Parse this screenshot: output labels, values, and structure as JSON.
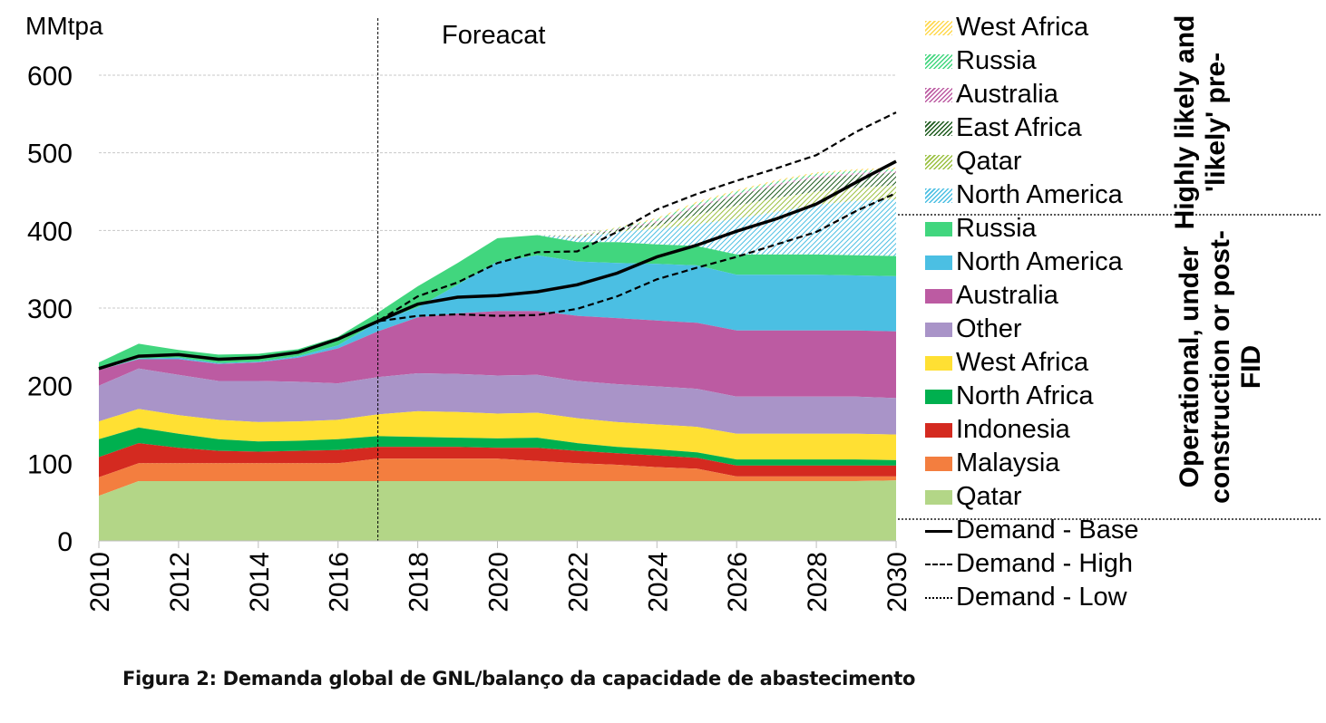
{
  "chart_data": {
    "type": "area",
    "title": "",
    "ylabel": "MMtpa",
    "xlabel": "",
    "forecast_label": "Foreacat",
    "forecast_start_x": 2017,
    "ylim": [
      0,
      600
    ],
    "yticks": [
      0,
      100,
      200,
      300,
      400,
      500,
      600
    ],
    "xlim": [
      2010,
      2030
    ],
    "xticks": [
      2010,
      2012,
      2014,
      2016,
      2018,
      2020,
      2022,
      2024,
      2026,
      2028,
      2030
    ],
    "grid": "horizontal-dotted",
    "x": [
      2010,
      2011,
      2012,
      2013,
      2014,
      2015,
      2016,
      2017,
      2018,
      2019,
      2020,
      2021,
      2022,
      2023,
      2024,
      2025,
      2026,
      2027,
      2028,
      2029,
      2030
    ],
    "stacked_cumulative": true,
    "series": [
      {
        "name": "Qatar",
        "group": "operational",
        "color": "#b3d687",
        "pattern": "solid",
        "values": [
          58,
          77,
          77,
          77,
          77,
          77,
          77,
          77,
          77,
          77,
          77,
          77,
          77,
          77,
          77,
          77,
          77,
          77,
          77,
          77,
          78
        ]
      },
      {
        "name": "Malaysia",
        "group": "operational",
        "color": "#f37e3f",
        "pattern": "solid",
        "values": [
          82,
          100,
          100,
          100,
          100,
          100,
          100,
          106,
          106,
          106,
          106,
          103,
          100,
          98,
          95,
          93,
          83,
          83,
          83,
          83,
          83
        ]
      },
      {
        "name": "Indonesia",
        "group": "operational",
        "color": "#d42a20",
        "pattern": "solid",
        "values": [
          108,
          126,
          120,
          116,
          115,
          116,
          117,
          121,
          121,
          121,
          120,
          120,
          116,
          113,
          110,
          107,
          97,
          97,
          97,
          97,
          97
        ]
      },
      {
        "name": "North Africa",
        "group": "operational",
        "color": "#00b04f",
        "pattern": "solid",
        "values": [
          131,
          146,
          138,
          131,
          128,
          129,
          131,
          135,
          134,
          133,
          132,
          133,
          126,
          121,
          118,
          114,
          105,
          105,
          105,
          105,
          104
        ]
      },
      {
        "name": "West Africa",
        "group": "operational",
        "color": "#ffe033",
        "pattern": "solid",
        "values": [
          154,
          170,
          162,
          156,
          153,
          154,
          156,
          163,
          167,
          166,
          164,
          165,
          158,
          153,
          150,
          147,
          138,
          138,
          138,
          138,
          137
        ]
      },
      {
        "name": "Other",
        "group": "operational",
        "color": "#a994c8",
        "pattern": "solid",
        "values": [
          200,
          222,
          214,
          206,
          206,
          205,
          203,
          211,
          216,
          215,
          213,
          214,
          206,
          202,
          199,
          196,
          186,
          186,
          186,
          186,
          184
        ]
      },
      {
        "name": "Australia",
        "group": "operational",
        "color": "#bc5ba2",
        "pattern": "solid",
        "values": [
          220,
          234,
          234,
          228,
          230,
          236,
          248,
          270,
          288,
          293,
          296,
          296,
          290,
          287,
          284,
          281,
          271,
          271,
          271,
          271,
          270
        ]
      },
      {
        "name": "North America",
        "group": "operational",
        "color": "#4bbfe3",
        "pattern": "solid",
        "values": [
          220,
          235,
          236,
          229,
          231,
          238,
          252,
          282,
          301,
          330,
          360,
          368,
          360,
          358,
          357,
          355,
          343,
          343,
          343,
          342,
          341
        ]
      },
      {
        "name": "Russia",
        "group": "operational",
        "color": "#41d67e",
        "pattern": "solid",
        "values": [
          230,
          254,
          246,
          240,
          241,
          247,
          263,
          294,
          328,
          358,
          390,
          394,
          385,
          385,
          382,
          380,
          369,
          369,
          369,
          368,
          367
        ]
      },
      {
        "name": "North America",
        "group": "likely",
        "color": "#4bbfe3",
        "pattern": "hatch",
        "values": [
          230,
          254,
          246,
          240,
          241,
          247,
          263,
          294,
          328,
          358,
          390,
          394,
          390,
          398,
          402,
          408,
          415,
          424,
          433,
          438,
          440
        ]
      },
      {
        "name": "Qatar",
        "group": "likely",
        "color": "#9ac03f",
        "pattern": "hatch",
        "values": [
          230,
          254,
          246,
          240,
          241,
          247,
          263,
          294,
          328,
          358,
          390,
          394,
          390,
          399,
          406,
          420,
          432,
          442,
          450,
          455,
          458
        ]
      },
      {
        "name": "East Africa",
        "group": "likely",
        "color": "#1c5a1c",
        "pattern": "hatch",
        "values": [
          230,
          254,
          246,
          240,
          241,
          247,
          263,
          294,
          328,
          358,
          390,
          394,
          391,
          401,
          410,
          430,
          445,
          458,
          468,
          472,
          474
        ]
      },
      {
        "name": "Australia",
        "group": "likely",
        "color": "#bc5ba2",
        "pattern": "hatch",
        "values": [
          230,
          254,
          246,
          240,
          241,
          247,
          263,
          294,
          328,
          358,
          390,
          394,
          392,
          402,
          412,
          432,
          447,
          460,
          470,
          474,
          476
        ]
      },
      {
        "name": "Russia",
        "group": "likely",
        "color": "#41d67e",
        "pattern": "hatch",
        "values": [
          230,
          254,
          246,
          240,
          241,
          247,
          263,
          294,
          328,
          358,
          390,
          394,
          393,
          403,
          414,
          435,
          450,
          463,
          473,
          477,
          479
        ]
      },
      {
        "name": "West Africa",
        "group": "likely",
        "color": "#ffd84d",
        "pattern": "hatch",
        "values": [
          230,
          254,
          246,
          240,
          241,
          247,
          263,
          294,
          328,
          358,
          390,
          394,
          394,
          404,
          416,
          437,
          452,
          465,
          475,
          479,
          481
        ]
      }
    ],
    "lines": [
      {
        "name": "Demand - Base",
        "style": "solid",
        "values": [
          222,
          238,
          240,
          234,
          236,
          243,
          260,
          283,
          305,
          314,
          316,
          321,
          330,
          345,
          366,
          381,
          399,
          415,
          434,
          462,
          489
        ]
      },
      {
        "name": "Demand - High",
        "style": "dashed",
        "values": [
          222,
          238,
          240,
          234,
          236,
          243,
          260,
          283,
          315,
          333,
          358,
          372,
          373,
          398,
          427,
          447,
          464,
          480,
          497,
          527,
          552
        ]
      },
      {
        "name": "Demand - Low",
        "style": "dashed",
        "values": [
          222,
          238,
          240,
          234,
          236,
          243,
          260,
          283,
          290,
          292,
          290,
          291,
          299,
          315,
          337,
          352,
          366,
          382,
          398,
          425,
          448
        ]
      }
    ]
  },
  "legend": {
    "likely_items": [
      "West Africa",
      "Russia",
      "Australia",
      "East Africa",
      "Qatar",
      "North America"
    ],
    "operational_items": [
      "Russia",
      "North America",
      "Australia",
      "Other",
      "West Africa",
      "North Africa",
      "Indonesia",
      "Malaysia",
      "Qatar"
    ],
    "line_items": [
      "Demand - Base",
      "Demand - High",
      "Demand - Low"
    ],
    "likely_group_label": "Highly likely and 'likely' pre-",
    "operational_group_label": "Operational, under construction or post-FID"
  },
  "caption": "Figura 2: Demanda global de GNL/balanço da capacidade de abastecimento"
}
